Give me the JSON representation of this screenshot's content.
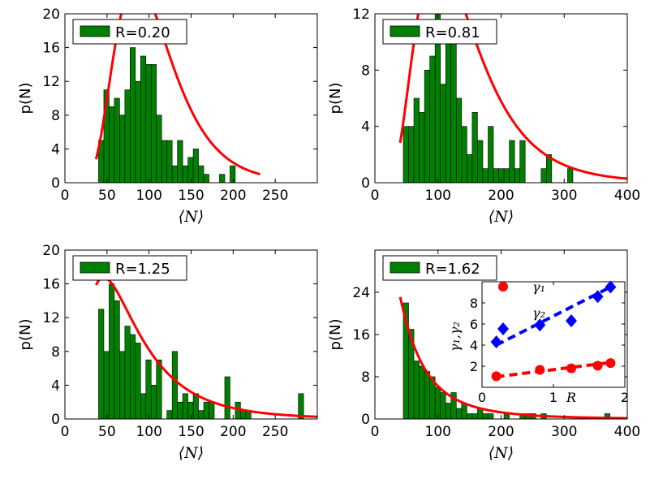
{
  "chart_data": [
    {
      "type": "bar",
      "title": "",
      "legend": "R=0.20",
      "legend_position": "top-left",
      "xlabel": "⟨N⟩",
      "ylabel": "p(N)",
      "xlim": [
        0,
        300
      ],
      "ylim": [
        0,
        20
      ],
      "xticks": [
        0,
        50,
        100,
        150,
        200,
        250
      ],
      "yticks": [
        0,
        4,
        8,
        12,
        16,
        20
      ],
      "bin_start": 40,
      "bin_width": 6.25,
      "values": [
        5,
        11,
        9,
        10,
        8,
        11,
        16,
        12,
        15,
        14,
        14,
        8,
        5,
        5,
        2,
        5,
        2,
        3,
        4,
        2,
        1,
        0,
        0,
        1,
        0,
        2
      ],
      "fit_color": "#ff0000",
      "bar_color": "#008000",
      "fit_curve": {
        "model": "lognormal",
        "scale": 2190,
        "mu": 4.6,
        "sigma": 0.4,
        "x_range": [
          37,
          232
        ]
      }
    },
    {
      "type": "bar",
      "title": "",
      "legend": "R=0.81",
      "legend_position": "top-left",
      "xlabel": "⟨N⟩",
      "ylabel": "p(N)",
      "xlim": [
        0,
        400
      ],
      "ylim": [
        0,
        12
      ],
      "xticks": [
        0,
        100,
        200,
        300,
        400
      ],
      "yticks": [
        0,
        4,
        8,
        12
      ],
      "bin_start": 45,
      "bin_width": 8.4,
      "values": [
        4,
        4,
        6,
        5,
        8,
        9,
        12,
        7,
        11,
        10,
        6,
        4,
        2,
        5,
        3,
        1,
        4,
        1,
        1,
        1,
        3,
        1,
        3,
        0,
        0,
        0,
        1,
        2,
        0,
        0,
        0,
        1
      ],
      "fit_color": "#ff0000",
      "bar_color": "#008000",
      "fit_curve": {
        "model": "lognormal",
        "scale": 2200,
        "mu": 4.84,
        "sigma": 0.49,
        "x_range": [
          40,
          400
        ]
      }
    },
    {
      "type": "bar",
      "title": "",
      "legend": "R=1.25",
      "legend_position": "top-left",
      "xlabel": "⟨N⟩",
      "ylabel": "p(N)",
      "xlim": [
        0,
        300
      ],
      "ylim": [
        0,
        20
      ],
      "xticks": [
        0,
        50,
        100,
        150,
        200,
        250
      ],
      "yticks": [
        0,
        4,
        8,
        12,
        16,
        20
      ],
      "bin_start": 40,
      "bin_width": 6.25,
      "values": [
        13,
        8,
        16,
        14,
        8,
        11,
        10,
        9,
        3,
        7,
        4,
        7,
        0,
        1,
        8,
        2,
        3,
        2,
        3,
        1,
        2,
        2,
        0,
        0,
        5,
        0,
        2,
        1,
        1,
        0,
        0,
        0,
        0,
        0,
        0,
        0,
        0,
        0,
        3
      ],
      "fit_color": "#ff0000",
      "bar_color": "#008000",
      "fit_curve": {
        "model": "lognormal",
        "scale": 1550,
        "mu": 4.25,
        "sigma": 0.65,
        "x_range": [
          37,
          300
        ]
      }
    },
    {
      "type": "bar",
      "title": "",
      "legend": "R=1.62",
      "legend_position": "top-left",
      "xlabel": "⟨N⟩",
      "ylabel": "p(N)",
      "xlim": [
        0,
        400
      ],
      "ylim": [
        0,
        32
      ],
      "xticks": [
        0,
        100,
        200,
        300,
        400
      ],
      "yticks": [
        0,
        8,
        16,
        24
      ],
      "bin_start": 45,
      "bin_width": 8.4,
      "values": [
        22,
        17,
        11,
        10,
        9,
        8,
        6,
        5,
        3,
        5,
        2,
        3,
        1,
        1,
        2,
        1,
        1,
        0,
        0,
        1,
        0,
        0,
        1,
        1,
        1,
        0,
        1,
        0,
        0,
        0,
        0,
        0,
        0,
        0,
        0,
        0,
        0,
        0,
        1
      ],
      "fit_color": "#ff0000",
      "bar_color": "#008000",
      "fit_curve": {
        "model": "lognormal",
        "scale": 2230,
        "mu": 3.75,
        "sigma": 0.96,
        "x_range": [
          40,
          400
        ]
      }
    }
  ],
  "inset": {
    "type": "scatter",
    "xlabel": "R",
    "ylabel": "γ₁,γ₂",
    "xlim": [
      0,
      2
    ],
    "ylim": [
      0,
      10
    ],
    "xticks": [
      0,
      1,
      2
    ],
    "yticks": [
      2,
      4,
      6,
      8
    ],
    "legend_position": "top-left",
    "series": [
      {
        "name": "γ₁",
        "color": "#ff0000",
        "marker": "circle",
        "x": [
          0.2,
          0.81,
          1.25,
          1.62,
          1.8
        ],
        "y": [
          1.05,
          1.65,
          1.8,
          2.05,
          2.3
        ],
        "fit": [
          1.0,
          2.35
        ]
      },
      {
        "name": "γ₂",
        "color": "#0000ff",
        "marker": "diamond",
        "x": [
          0.2,
          0.81,
          1.25,
          1.62,
          1.8
        ],
        "y": [
          4.3,
          5.9,
          6.3,
          8.6,
          9.5
        ],
        "fit": [
          4.0,
          9.5
        ]
      }
    ]
  }
}
